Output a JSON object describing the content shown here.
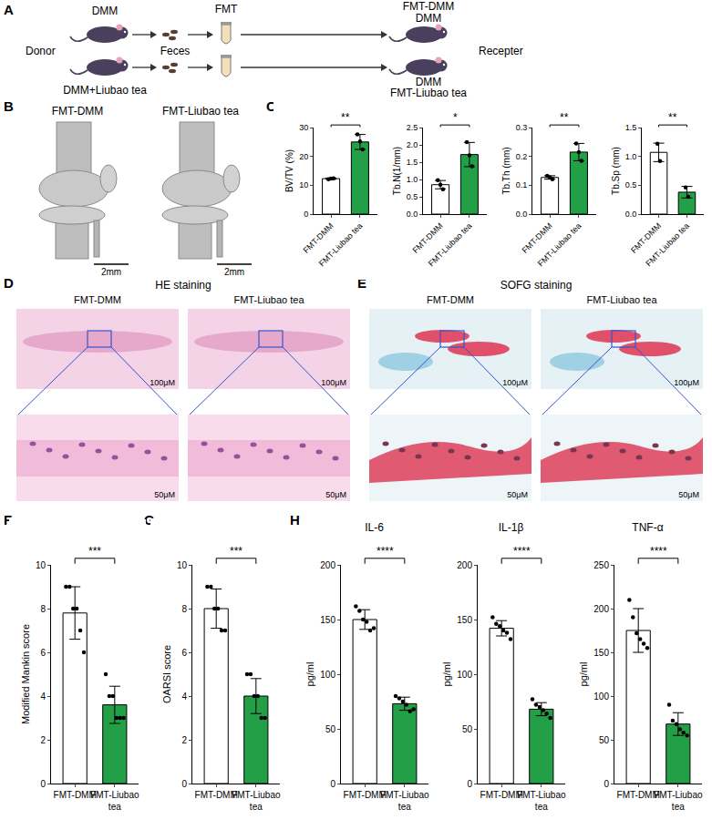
{
  "panel_letters": [
    "A",
    "B",
    "C",
    "D",
    "E",
    "F",
    "G",
    "H"
  ],
  "figure": {
    "A": {
      "donor": "Donor",
      "recipient": "Recepter",
      "feces": "Feces",
      "fmt": "FMT",
      "donor_groups": [
        "DMM",
        "DMM+Liubao tea"
      ],
      "recipient_groups": [
        {
          "upper": "FMT-DMM",
          "lower": "DMM"
        },
        {
          "upper": "DMM",
          "lower": "FMT-Liubao tea"
        }
      ]
    },
    "B": {
      "images": [
        {
          "title": "FMT-DMM",
          "scale_bar": "2mm"
        },
        {
          "title": "FMT-Liubao tea",
          "scale_bar": "2mm"
        }
      ]
    },
    "D": {
      "title": "HE staining",
      "images": [
        {
          "title": "FMT-DMM",
          "scale_bars": [
            "100μM",
            "50μM"
          ]
        },
        {
          "title": "FMT-Liubao tea",
          "scale_bars": [
            "100μM",
            "50μM"
          ]
        }
      ]
    },
    "E": {
      "title": "SOFG staining",
      "images": [
        {
          "title": "FMT-DMM",
          "scale_bars": [
            "100μM",
            "50μM"
          ]
        },
        {
          "title": "FMT-Liubao tea",
          "scale_bars": [
            "100μM",
            "50μM"
          ]
        }
      ]
    }
  },
  "chart_data": [
    {
      "type": "bar",
      "y_label": "BV/TV (%)",
      "categories": [
        "FMT-DMM",
        "FMT-Liubao tea"
      ],
      "values": [
        12.3,
        25.0
      ],
      "error": [
        0.2,
        2.6
      ],
      "points": [
        [
          12.1,
          12.3,
          12.4
        ],
        [
          27.6,
          25.2,
          22.4
        ]
      ],
      "colors": [
        "#ffffff",
        "#23a047"
      ],
      "ylim": [
        0,
        30
      ],
      "yticks": [
        0,
        10,
        20,
        30
      ],
      "significance": "**"
    },
    {
      "type": "bar",
      "y_label": "Tb.N(1/mm)",
      "categories": [
        "FMT-DMM",
        "FMT-Liubao tea"
      ],
      "values": [
        0.85,
        1.72
      ],
      "error": [
        0.12,
        0.35
      ],
      "points": [
        [
          0.98,
          0.85,
          0.72
        ],
        [
          2.08,
          1.7,
          1.38
        ]
      ],
      "colors": [
        "#ffffff",
        "#23a047"
      ],
      "ylim": [
        0,
        2.5
      ],
      "yticks": [
        {
          "value": 0,
          "label": "0.0"
        },
        0.5,
        {
          "value": 1,
          "label": "1.0"
        },
        1.5,
        {
          "value": 2,
          "label": "2.0"
        },
        2.5
      ],
      "significance": "*"
    },
    {
      "type": "bar",
      "y_label": "Tb.Th (mm)",
      "categories": [
        "FMT-DMM",
        "FMT-Liubao tea"
      ],
      "values": [
        0.127,
        0.215
      ],
      "error": [
        0.006,
        0.03
      ],
      "points": [
        [
          0.133,
          0.127,
          0.121
        ],
        [
          0.245,
          0.215,
          0.185
        ]
      ],
      "colors": [
        "#ffffff",
        "#23a047"
      ],
      "ylim": [
        0,
        0.3
      ],
      "yticks": [
        {
          "value": 0,
          "label": "0.0"
        },
        0.1,
        0.2,
        0.3
      ],
      "significance": "**"
    },
    {
      "type": "bar",
      "y_label": "Tb.Sp (mm)",
      "categories": [
        "FMT-DMM",
        "FMT-Liubao tea"
      ],
      "values": [
        1.07,
        0.38
      ],
      "error": [
        0.16,
        0.1
      ],
      "points": [
        [
          1.22,
          0.92
        ],
        [
          0.46,
          0.3
        ]
      ],
      "colors": [
        "#ffffff",
        "#23a047"
      ],
      "ylim": [
        0,
        1.5
      ],
      "yticks": [
        {
          "value": 0,
          "label": "0.0"
        },
        0.5,
        {
          "value": 1,
          "label": "1.0"
        },
        1.5
      ],
      "significance": "**"
    },
    {
      "type": "bar",
      "y_label": "Modified Mankin score",
      "categories": [
        "FMT-DMM",
        "FMT-Liubao tea"
      ],
      "values": [
        7.8,
        3.6
      ],
      "error": [
        1.2,
        0.85
      ],
      "points": [
        [
          9,
          9,
          8,
          8,
          7,
          6
        ],
        [
          5,
          4,
          4,
          3,
          3,
          3
        ]
      ],
      "colors": [
        "#ffffff",
        "#23a047"
      ],
      "ylim": [
        0,
        10
      ],
      "yticks": [
        0,
        2,
        4,
        6,
        8,
        10
      ],
      "significance": "***"
    },
    {
      "type": "bar",
      "y_label": "OARSI score",
      "categories": [
        "FMT-DMM",
        "FMT-Liubao tea"
      ],
      "values": [
        8.0,
        4.0
      ],
      "error": [
        0.9,
        0.8
      ],
      "points": [
        [
          9,
          9,
          8,
          8,
          7,
          7
        ],
        [
          5,
          5,
          4,
          4,
          3,
          3
        ]
      ],
      "colors": [
        "#ffffff",
        "#23a047"
      ],
      "ylim": [
        0,
        10
      ],
      "yticks": [
        0,
        2,
        4,
        6,
        8,
        10
      ],
      "significance": "***"
    },
    {
      "type": "bar",
      "title": "IL-6",
      "y_label": "pg/ml",
      "categories": [
        "FMT-DMM",
        "FMT-Liubao tea"
      ],
      "values": [
        150,
        73
      ],
      "error": [
        9,
        6
      ],
      "points": [
        [
          162,
          158,
          150,
          148,
          140,
          142
        ],
        [
          80,
          78,
          75,
          72,
          66,
          68
        ]
      ],
      "colors": [
        "#ffffff",
        "#23a047"
      ],
      "ylim": [
        0,
        200
      ],
      "yticks": [
        0,
        50,
        100,
        150,
        200
      ],
      "significance": "****"
    },
    {
      "type": "bar",
      "title": "IL-1β",
      "y_label": "pg/ml",
      "categories": [
        "FMT-DMM",
        "FMT-Liubao tea"
      ],
      "values": [
        142,
        68
      ],
      "error": [
        7,
        6
      ],
      "points": [
        [
          152,
          146,
          144,
          140,
          138,
          132
        ],
        [
          77,
          72,
          70,
          67,
          64,
          60
        ]
      ],
      "colors": [
        "#ffffff",
        "#23a047"
      ],
      "ylim": [
        0,
        200
      ],
      "yticks": [
        0,
        50,
        100,
        150,
        200
      ],
      "significance": "****"
    },
    {
      "type": "bar",
      "title": "TNF-α",
      "y_label": "pg/ml",
      "categories": [
        "FMT-DMM",
        "FMT-Liubao tea"
      ],
      "values": [
        175,
        68
      ],
      "error": [
        25,
        13
      ],
      "points": [
        [
          210,
          190,
          172,
          165,
          160,
          155
        ],
        [
          90,
          72,
          68,
          62,
          58,
          55
        ]
      ],
      "colors": [
        "#ffffff",
        "#23a047"
      ],
      "ylim": [
        0,
        250
      ],
      "yticks": [
        0,
        50,
        100,
        150,
        200,
        250
      ],
      "significance": "****"
    }
  ]
}
